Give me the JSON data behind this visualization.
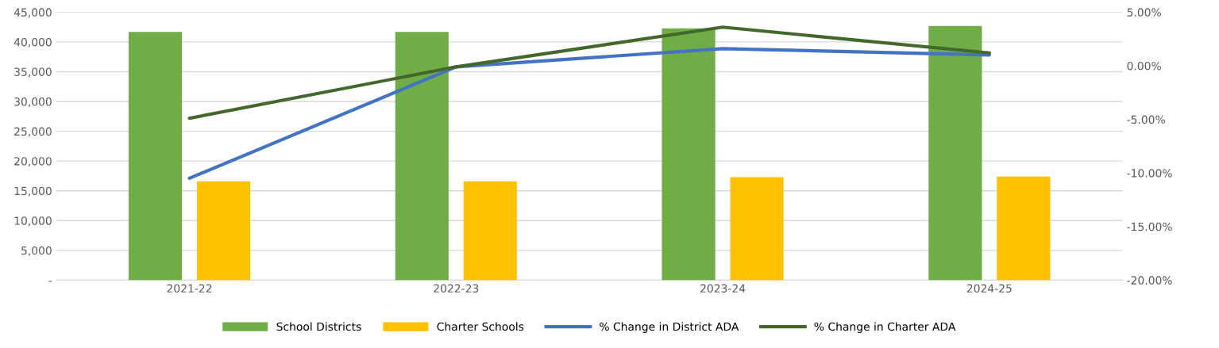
{
  "chart_data": {
    "type": "bar",
    "categories": [
      "2021-22",
      "2022-23",
      "2023-24",
      "2024-25"
    ],
    "series": [
      {
        "name": "School Districts",
        "color": "#70ad47",
        "values": [
          41700,
          41700,
          42300,
          42700
        ]
      },
      {
        "name": "Charter Schools",
        "color": "#ffc000",
        "values": [
          16600,
          16600,
          17300,
          17400
        ]
      },
      {
        "name": "% Change in District ADA",
        "type": "line",
        "axis": "y2",
        "color": "#4472c4",
        "values": [
          -10.5,
          -0.1,
          1.6,
          1.0
        ]
      },
      {
        "name": "% Change in Charter ADA",
        "type": "line",
        "axis": "y2",
        "color": "#43682b",
        "values": [
          -4.9,
          -0.1,
          3.6,
          1.2
        ]
      }
    ],
    "ylim": [
      0,
      45000
    ],
    "yticks": [
      {
        "value": 0,
        "label": "-"
      },
      {
        "value": 5000,
        "label": "5,000"
      },
      {
        "value": 10000,
        "label": "10,000"
      },
      {
        "value": 15000,
        "label": "15,000"
      },
      {
        "value": 20000,
        "label": "20,000"
      },
      {
        "value": 25000,
        "label": "25,000"
      },
      {
        "value": 30000,
        "label": "30,000"
      },
      {
        "value": 35000,
        "label": "35,000"
      },
      {
        "value": 40000,
        "label": "40,000"
      },
      {
        "value": 45000,
        "label": "45,000"
      }
    ],
    "y2lim": [
      -20,
      5
    ],
    "y2ticks": [
      {
        "value": -20,
        "label": "-20.00%"
      },
      {
        "value": -15,
        "label": "-15.00%"
      },
      {
        "value": -10,
        "label": "-10.00%"
      },
      {
        "value": -5,
        "label": "-5.00%"
      },
      {
        "value": 0,
        "label": "0.00%"
      },
      {
        "value": 5,
        "label": "5.00%"
      }
    ],
    "grid": "y",
    "legend": "bottom",
    "marker": "none",
    "line_style": "solid"
  }
}
